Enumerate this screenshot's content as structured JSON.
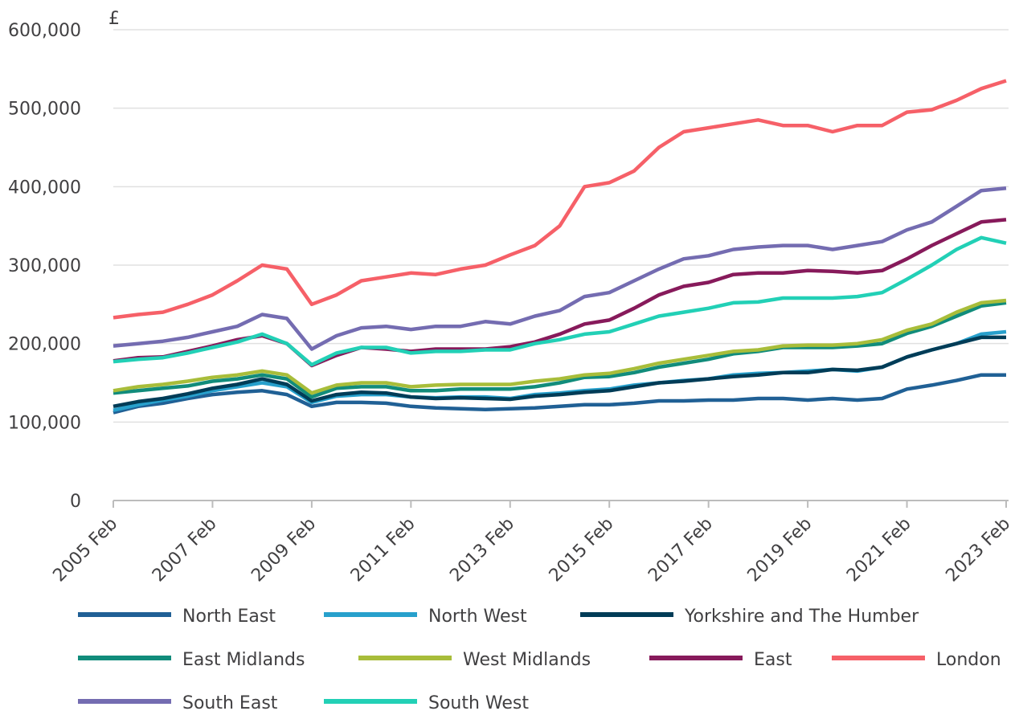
{
  "chart_data": {
    "type": "line",
    "y_unit": "£",
    "x": [
      "2005 Feb",
      "2005 Aug",
      "2006 Feb",
      "2006 Aug",
      "2007 Feb",
      "2007 Aug",
      "2008 Feb",
      "2008 Aug",
      "2009 Feb",
      "2009 Aug",
      "2010 Feb",
      "2010 Aug",
      "2011 Feb",
      "2011 Aug",
      "2012 Feb",
      "2012 Aug",
      "2013 Feb",
      "2013 Aug",
      "2014 Feb",
      "2014 Aug",
      "2015 Feb",
      "2015 Aug",
      "2016 Feb",
      "2016 Aug",
      "2017 Feb",
      "2017 Aug",
      "2018 Feb",
      "2018 Aug",
      "2019 Feb",
      "2019 Aug",
      "2020 Feb",
      "2020 Aug",
      "2021 Feb",
      "2021 Aug",
      "2022 Feb",
      "2022 Aug",
      "2023 Feb"
    ],
    "xticks": [
      "2005 Feb",
      "2007 Feb",
      "2009 Feb",
      "2011 Feb",
      "2013 Feb",
      "2015 Feb",
      "2017 Feb",
      "2019 Feb",
      "2021 Feb",
      "2023 Feb"
    ],
    "ylim": [
      0,
      600000
    ],
    "yticks": [
      0,
      {
        "value": 100000,
        "label": "100,000"
      },
      {
        "value": 200000,
        "label": "200,000"
      },
      {
        "value": 300000,
        "label": "300,000"
      },
      {
        "value": 400000,
        "label": "400,000"
      },
      {
        "value": 500000,
        "label": "500,000"
      },
      {
        "value": 600000,
        "label": "600,000"
      }
    ],
    "grid": true,
    "series": [
      {
        "name": "North East",
        "color": "#206095",
        "values": [
          112000,
          120000,
          124000,
          130000,
          135000,
          138000,
          140000,
          135000,
          120000,
          125000,
          125000,
          124000,
          120000,
          118000,
          117000,
          116000,
          117000,
          118000,
          120000,
          122000,
          122000,
          124000,
          127000,
          127000,
          128000,
          128000,
          130000,
          130000,
          128000,
          130000,
          128000,
          130000,
          142000,
          147000,
          153000,
          160000,
          160000
        ]
      },
      {
        "name": "North West",
        "color": "#27a0cc",
        "values": [
          115000,
          122000,
          128000,
          133000,
          140000,
          145000,
          150000,
          145000,
          125000,
          133000,
          135000,
          135000,
          132000,
          131000,
          132000,
          132000,
          130000,
          135000,
          137000,
          140000,
          142000,
          147000,
          150000,
          153000,
          155000,
          160000,
          162000,
          163000,
          165000,
          167000,
          165000,
          170000,
          183000,
          192000,
          200000,
          212000,
          215000
        ]
      },
      {
        "name": "Yorkshire and The Humber",
        "color": "#003c57",
        "values": [
          120000,
          126000,
          130000,
          136000,
          143000,
          148000,
          155000,
          148000,
          127000,
          135000,
          138000,
          137000,
          132000,
          130000,
          131000,
          130000,
          129000,
          133000,
          135000,
          138000,
          140000,
          145000,
          150000,
          152000,
          155000,
          158000,
          160000,
          163000,
          163000,
          167000,
          166000,
          170000,
          183000,
          192000,
          200000,
          208000,
          208000
        ]
      },
      {
        "name": "East Midlands",
        "color": "#118c7b",
        "values": [
          137000,
          140000,
          143000,
          146000,
          152000,
          155000,
          160000,
          155000,
          132000,
          143000,
          145000,
          145000,
          140000,
          140000,
          142000,
          142000,
          142000,
          145000,
          150000,
          157000,
          158000,
          163000,
          170000,
          175000,
          180000,
          187000,
          190000,
          195000,
          195000,
          195000,
          197000,
          200000,
          213000,
          222000,
          235000,
          248000,
          252000
        ]
      },
      {
        "name": "West Midlands",
        "color": "#a8bd3a",
        "values": [
          140000,
          145000,
          148000,
          152000,
          157000,
          160000,
          165000,
          160000,
          137000,
          147000,
          150000,
          150000,
          145000,
          147000,
          148000,
          148000,
          148000,
          152000,
          155000,
          160000,
          162000,
          168000,
          175000,
          180000,
          185000,
          190000,
          192000,
          197000,
          198000,
          198000,
          200000,
          205000,
          217000,
          225000,
          240000,
          252000,
          255000
        ]
      },
      {
        "name": "East",
        "color": "#871a5b",
        "values": [
          178000,
          182000,
          183000,
          190000,
          197000,
          205000,
          210000,
          200000,
          172000,
          185000,
          195000,
          193000,
          190000,
          193000,
          193000,
          193000,
          196000,
          202000,
          212000,
          225000,
          230000,
          245000,
          262000,
          273000,
          278000,
          288000,
          290000,
          290000,
          293000,
          292000,
          290000,
          293000,
          308000,
          325000,
          340000,
          355000,
          358000
        ]
      },
      {
        "name": "London",
        "color": "#f66068",
        "values": [
          233000,
          237000,
          240000,
          250000,
          262000,
          280000,
          300000,
          295000,
          250000,
          262000,
          280000,
          285000,
          290000,
          288000,
          295000,
          300000,
          313000,
          325000,
          350000,
          400000,
          405000,
          420000,
          450000,
          470000,
          475000,
          480000,
          485000,
          478000,
          478000,
          470000,
          478000,
          478000,
          495000,
          498000,
          510000,
          525000,
          535000
        ]
      },
      {
        "name": "South East",
        "color": "#746cb1",
        "values": [
          197000,
          200000,
          203000,
          208000,
          215000,
          222000,
          237000,
          232000,
          193000,
          210000,
          220000,
          222000,
          218000,
          222000,
          222000,
          228000,
          225000,
          235000,
          242000,
          260000,
          265000,
          280000,
          295000,
          308000,
          312000,
          320000,
          323000,
          325000,
          325000,
          320000,
          325000,
          330000,
          345000,
          355000,
          375000,
          395000,
          398000
        ]
      },
      {
        "name": "South West",
        "color": "#22d0b6",
        "values": [
          177000,
          180000,
          182000,
          188000,
          195000,
          202000,
          212000,
          200000,
          173000,
          188000,
          195000,
          195000,
          188000,
          190000,
          190000,
          192000,
          192000,
          200000,
          205000,
          212000,
          215000,
          225000,
          235000,
          240000,
          245000,
          252000,
          253000,
          258000,
          258000,
          258000,
          260000,
          265000,
          282000,
          300000,
          320000,
          335000,
          328000
        ]
      }
    ]
  }
}
